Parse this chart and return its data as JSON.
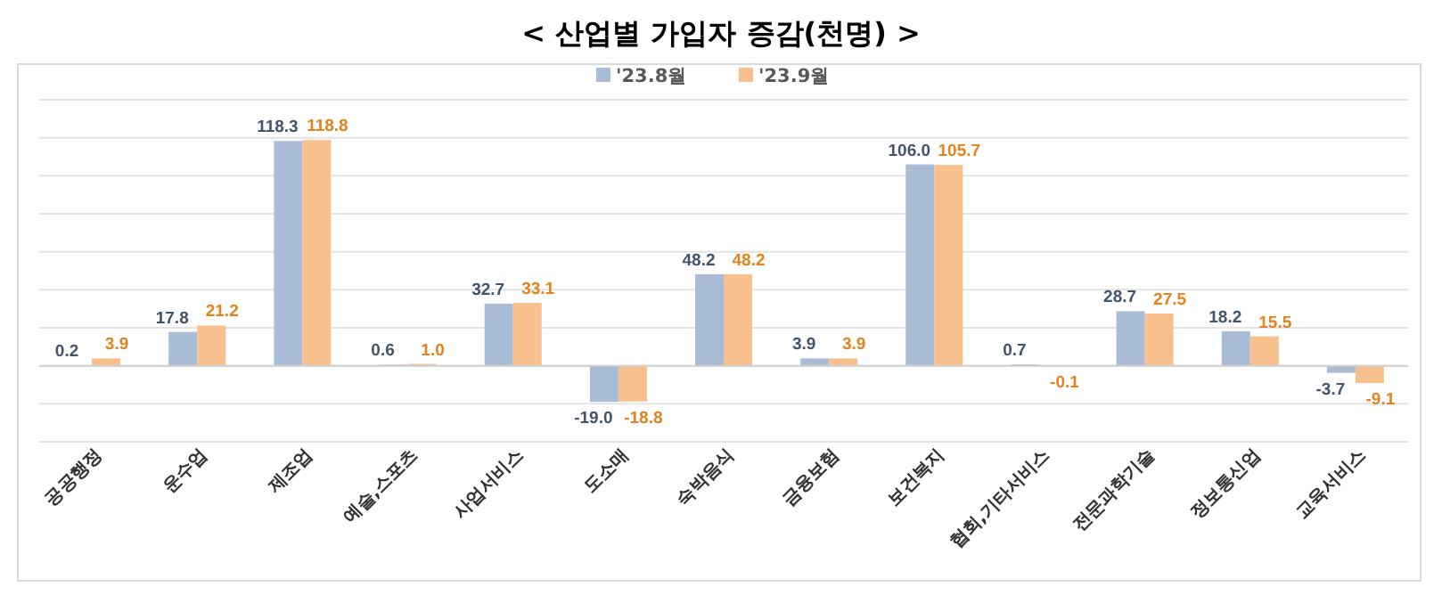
{
  "chart_data": {
    "type": "bar",
    "title": "< 산업별 가입자 증감(천명) >",
    "categories": [
      "공공행정",
      "운수업",
      "제조업",
      "예술,스포츠",
      "사업서비스",
      "도소매",
      "숙박음식",
      "금융보험",
      "보건복지",
      "협회,기타서비스",
      "전문과학기술",
      "정보통신업",
      "교육서비스"
    ],
    "series": [
      {
        "name": "'23.8월",
        "color": "#a9bcd6",
        "values": [
          0.2,
          17.8,
          118.3,
          0.6,
          32.7,
          -19.0,
          48.2,
          3.9,
          106.0,
          0.7,
          28.7,
          18.2,
          -3.7
        ],
        "value_labels": [
          "0.2",
          "17.8",
          "118.3",
          "0.6",
          "32.7",
          "-19.0",
          "48.2",
          "3.9",
          "106.0",
          "0.7",
          "28.7",
          "18.2",
          "-3.7"
        ]
      },
      {
        "name": "'23.9월",
        "color": "#f9c08f",
        "values": [
          3.9,
          21.2,
          118.8,
          1.0,
          33.1,
          -18.8,
          48.2,
          3.9,
          105.7,
          -0.1,
          27.5,
          15.5,
          -9.1
        ],
        "value_labels": [
          "3.9",
          "21.2",
          "118.8",
          "1.0",
          "33.1",
          "-18.8",
          "48.2",
          "3.9",
          "105.7",
          "-0.1",
          "27.5",
          "15.5",
          "-9.1"
        ]
      }
    ],
    "ylim": [
      -40,
      140
    ],
    "yticks": [
      {
        "value": -40,
        "label": null
      },
      {
        "value": -20,
        "label": null
      },
      {
        "value": 0,
        "label": null
      },
      {
        "value": 20,
        "label": null
      },
      {
        "value": 40,
        "label": null
      },
      {
        "value": 60,
        "label": null
      },
      {
        "value": 80,
        "label": null
      },
      {
        "value": 100,
        "label": null
      },
      {
        "value": 120,
        "label": null
      },
      {
        "value": 140,
        "label": null
      }
    ],
    "grid": "y",
    "legend": "top"
  }
}
